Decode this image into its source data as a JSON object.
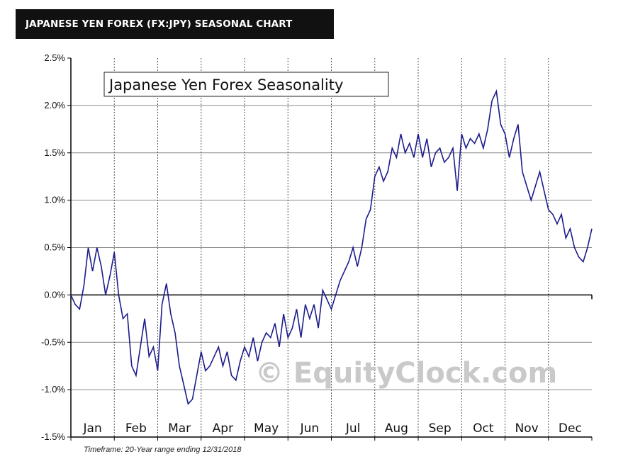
{
  "header": {
    "title": "JAPANESE YEN FOREX (FX:JPY) SEASONAL CHART"
  },
  "chart_data": {
    "type": "line",
    "title": "Japanese Yen Forex Seasonality",
    "footnote": "Timeframe: 20-Year range ending 12/31/2018",
    "watermark": "© EquityClock.com",
    "ylim": [
      -1.5,
      2.5
    ],
    "y_ticks": [
      "2.5%",
      "2.0%",
      "1.5%",
      "1.0%",
      "0.5%",
      "0.0%",
      "-0.5%",
      "-1.0%",
      "-1.5%"
    ],
    "y_tick_values": [
      2.5,
      2.0,
      1.5,
      1.0,
      0.5,
      0.0,
      -0.5,
      -1.0,
      -1.5
    ],
    "categories": [
      "Jan",
      "Feb",
      "Mar",
      "Apr",
      "May",
      "Jun",
      "Jul",
      "Aug",
      "Sep",
      "Oct",
      "Nov",
      "Dec"
    ],
    "grid": true,
    "line_color": "#1c1c8c",
    "series": [
      {
        "x": [
          0,
          0.1,
          0.2,
          0.3,
          0.4,
          0.5,
          0.6,
          0.7,
          0.8,
          0.9,
          1.0,
          1.1,
          1.2,
          1.3,
          1.4,
          1.5,
          1.6,
          1.7,
          1.8,
          1.9,
          2.0,
          2.1,
          2.2,
          2.3,
          2.4,
          2.5,
          2.6,
          2.7,
          2.8,
          2.9,
          3.0,
          3.1,
          3.2,
          3.3,
          3.4,
          3.5,
          3.6,
          3.7,
          3.8,
          3.9,
          4.0,
          4.1,
          4.2,
          4.3,
          4.4,
          4.5,
          4.6,
          4.7,
          4.8,
          4.9,
          5.0,
          5.1,
          5.2,
          5.3,
          5.4,
          5.5,
          5.6,
          5.7,
          5.8,
          5.9,
          6.0,
          6.1,
          6.2,
          6.3,
          6.4,
          6.5,
          6.6,
          6.7,
          6.8,
          6.9,
          7.0,
          7.1,
          7.2,
          7.3,
          7.4,
          7.5,
          7.6,
          7.7,
          7.8,
          7.9,
          8.0,
          8.1,
          8.2,
          8.3,
          8.4,
          8.5,
          8.6,
          8.7,
          8.8,
          8.9,
          9.0,
          9.1,
          9.2,
          9.3,
          9.4,
          9.5,
          9.6,
          9.7,
          9.8,
          9.9,
          10.0,
          10.1,
          10.2,
          10.3,
          10.4,
          10.5,
          10.6,
          10.7,
          10.8,
          10.9,
          11.0,
          11.1,
          11.2,
          11.3,
          11.4,
          11.5,
          11.6,
          11.7,
          11.8,
          11.9,
          12.0
        ],
        "values": [
          0.0,
          -0.1,
          -0.15,
          0.1,
          0.5,
          0.25,
          0.5,
          0.3,
          0.0,
          0.2,
          0.45,
          0.0,
          -0.25,
          -0.2,
          -0.75,
          -0.85,
          -0.55,
          -0.25,
          -0.65,
          -0.55,
          -0.8,
          -0.1,
          0.12,
          -0.2,
          -0.4,
          -0.75,
          -0.95,
          -1.15,
          -1.1,
          -0.85,
          -0.6,
          -0.8,
          -0.75,
          -0.65,
          -0.55,
          -0.75,
          -0.6,
          -0.85,
          -0.9,
          -0.7,
          -0.55,
          -0.65,
          -0.45,
          -0.7,
          -0.5,
          -0.4,
          -0.45,
          -0.3,
          -0.55,
          -0.2,
          -0.45,
          -0.35,
          -0.15,
          -0.45,
          -0.1,
          -0.25,
          -0.1,
          -0.35,
          0.05,
          -0.05,
          -0.15,
          0.0,
          0.15,
          0.25,
          0.35,
          0.5,
          0.3,
          0.5,
          0.8,
          0.9,
          1.25,
          1.35,
          1.2,
          1.3,
          1.55,
          1.45,
          1.7,
          1.5,
          1.6,
          1.45,
          1.7,
          1.45,
          1.65,
          1.35,
          1.5,
          1.55,
          1.4,
          1.45,
          1.55,
          1.1,
          1.7,
          1.55,
          1.65,
          1.6,
          1.7,
          1.55,
          1.75,
          2.05,
          2.15,
          1.8,
          1.7,
          1.45,
          1.65,
          1.8,
          1.3,
          1.15,
          1.0,
          1.15,
          1.3,
          1.1,
          0.9,
          0.85,
          0.75,
          0.85,
          0.6,
          0.7,
          0.5,
          0.4,
          0.35,
          0.5,
          0.7
        ]
      }
    ]
  }
}
